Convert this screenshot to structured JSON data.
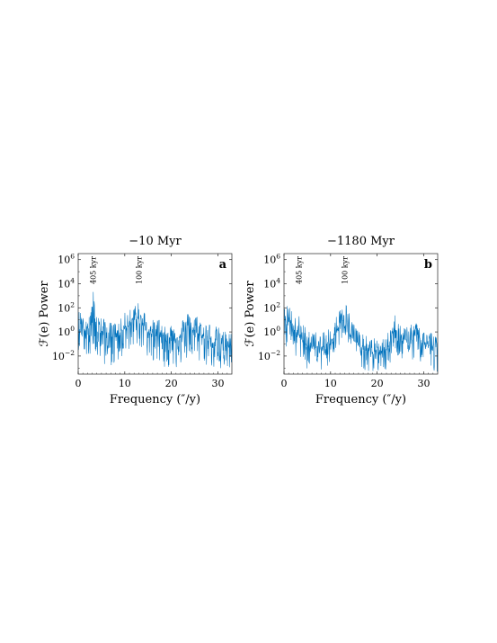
{
  "chart_data": [
    {
      "type": "line",
      "title": "−10 Myr",
      "panel_label": "a",
      "xlabel": "Frequency (″/y)",
      "ylabel": "ℱ(e) Power",
      "xlim": [
        0,
        33
      ],
      "ylim_log10": [
        -3.5,
        6.5
      ],
      "log_y": true,
      "xticks": [
        "0",
        "10",
        "20",
        "30"
      ],
      "yticks": [
        "10^-2",
        "10^0",
        "10^2",
        "10^4",
        "10^6"
      ],
      "annotations": [
        {
          "text": "405 kyr",
          "x": 3.2
        },
        {
          "text": "100 kyr",
          "x": 13.0
        }
      ],
      "series": [
        {
          "color": "#0072BD",
          "x": [
            0.3,
            0.8,
            1.5,
            2.2,
            2.9,
            3.2,
            3.6,
            4.3,
            5.0,
            6.0,
            7.0,
            8.0,
            9.0,
            10.0,
            11.0,
            11.8,
            12.4,
            13.0,
            13.5,
            14.2,
            15.0,
            16.0,
            17.0,
            18.0,
            19.0,
            20.0,
            21.0,
            22.0,
            23.0,
            24.0,
            25.0,
            26.0,
            27.0,
            28.0,
            29.0,
            30.0,
            31.0,
            32.0,
            32.8
          ],
          "peak_log10": [
            1.8,
            2.0,
            1.6,
            1.8,
            2.4,
            3.6,
            2.2,
            1.6,
            1.2,
            1.0,
            0.8,
            0.8,
            1.0,
            1.6,
            2.0,
            2.2,
            2.6,
            2.4,
            2.0,
            1.8,
            1.4,
            1.0,
            1.2,
            1.0,
            0.8,
            0.8,
            0.6,
            1.0,
            1.4,
            1.8,
            1.6,
            1.2,
            0.8,
            0.8,
            0.6,
            0.4,
            0.2,
            0.0,
            0.0
          ],
          "median_log10": [
            0.4,
            0.5,
            0.3,
            0.3,
            0.6,
            1.2,
            0.6,
            0.3,
            -0.1,
            -0.2,
            -0.4,
            -0.3,
            -0.2,
            0.3,
            0.6,
            0.8,
            1.0,
            0.9,
            0.6,
            0.4,
            0.1,
            -0.2,
            -0.2,
            -0.4,
            -0.5,
            -0.6,
            -0.7,
            -0.4,
            -0.1,
            0.3,
            0.2,
            -0.2,
            -0.5,
            -0.6,
            -0.7,
            -0.8,
            -1.0,
            -1.2,
            -1.2
          ],
          "trough_log10": [
            -1.5,
            -1.5,
            -1.8,
            -2.2,
            -1.6,
            -1.2,
            -1.8,
            -2.2,
            -2.6,
            -2.8,
            -2.8,
            -2.6,
            -2.4,
            -1.8,
            -1.4,
            -1.2,
            -1.0,
            -1.2,
            -1.6,
            -1.8,
            -2.2,
            -2.6,
            -2.6,
            -2.8,
            -3.0,
            -3.0,
            -3.0,
            -2.8,
            -2.4,
            -2.0,
            -2.2,
            -2.6,
            -2.8,
            -3.0,
            -3.0,
            -3.2,
            -3.2,
            -3.3,
            -3.3
          ]
        }
      ]
    },
    {
      "type": "line",
      "title": "−1180 Myr",
      "panel_label": "b",
      "xlabel": "Frequency (″/y)",
      "ylabel": "ℱ(e) Power",
      "xlim": [
        0,
        33
      ],
      "ylim_log10": [
        -3.5,
        6.5
      ],
      "log_y": true,
      "xticks": [
        "0",
        "10",
        "20",
        "30"
      ],
      "yticks": [
        "10^-2",
        "10^0",
        "10^2",
        "10^4",
        "10^6"
      ],
      "annotations": [
        {
          "text": "405 kyr",
          "x": 3.2
        },
        {
          "text": "100 kyr",
          "x": 13.0
        }
      ],
      "series": [
        {
          "color": "#0072BD",
          "x": [
            0.3,
            0.8,
            1.5,
            2.2,
            2.9,
            3.2,
            3.6,
            4.3,
            5.0,
            6.0,
            7.0,
            8.0,
            9.0,
            10.0,
            11.0,
            11.8,
            12.4,
            13.0,
            13.5,
            14.2,
            15.0,
            16.0,
            17.0,
            18.0,
            19.0,
            20.0,
            21.0,
            22.0,
            23.0,
            24.0,
            25.0,
            26.0,
            27.0,
            28.0,
            29.0,
            30.0,
            31.0,
            32.0,
            32.8
          ],
          "peak_log10": [
            2.0,
            2.6,
            2.2,
            1.4,
            1.2,
            1.4,
            1.0,
            0.6,
            0.4,
            0.2,
            0.0,
            -0.2,
            0.2,
            0.6,
            1.2,
            1.8,
            2.6,
            2.8,
            2.2,
            1.4,
            0.8,
            0.2,
            -0.2,
            -0.4,
            -0.4,
            -0.6,
            -0.6,
            -0.4,
            0.6,
            1.6,
            0.8,
            0.4,
            0.8,
            1.0,
            0.6,
            0.4,
            0.2,
            0.0,
            -0.2
          ],
          "median_log10": [
            0.6,
            1.0,
            0.8,
            0.0,
            -0.3,
            -0.2,
            -0.5,
            -0.9,
            -1.0,
            -1.2,
            -1.4,
            -1.5,
            -1.2,
            -0.8,
            -0.2,
            0.4,
            1.0,
            1.2,
            0.6,
            -0.1,
            -0.6,
            -1.1,
            -1.4,
            -1.6,
            -1.6,
            -1.7,
            -1.7,
            -1.5,
            -0.8,
            0.0,
            -0.6,
            -0.9,
            -0.6,
            -0.4,
            -0.7,
            -0.9,
            -1.1,
            -1.3,
            -1.4
          ],
          "trough_log10": [
            -1.4,
            -1.0,
            -1.2,
            -2.0,
            -2.4,
            -2.2,
            -2.6,
            -3.0,
            -3.1,
            -3.2,
            -3.3,
            -3.3,
            -3.0,
            -2.6,
            -2.0,
            -1.4,
            -0.8,
            -0.6,
            -1.2,
            -2.0,
            -2.6,
            -3.0,
            -3.2,
            -3.3,
            -3.3,
            -3.3,
            -3.3,
            -3.2,
            -2.6,
            -1.8,
            -2.4,
            -2.8,
            -2.4,
            -2.2,
            -2.6,
            -2.8,
            -3.0,
            -3.2,
            -3.3
          ]
        }
      ]
    }
  ]
}
